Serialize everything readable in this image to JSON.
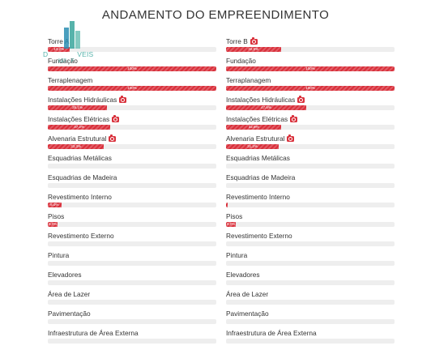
{
  "page": {
    "title": "ANDAMENTO DO EMPREENDIMENTO"
  },
  "colors": {
    "accent": "#d9303b",
    "track": "#eeeeee",
    "watermark": "#3aa69d"
  },
  "watermark": {
    "brand": "D",
    "brand_tail": "VEIS",
    "creci": "337 - F"
  },
  "towers": [
    {
      "name": "Torre A",
      "has_camera": false,
      "total_progress": 0.132,
      "total_progress_label": "13,2%",
      "stages": [
        {
          "label": "Fundação",
          "progress": 1.0,
          "progress_label": "100%",
          "camera": false
        },
        {
          "label": "Terraplenagem",
          "progress": 1.0,
          "progress_label": "100%",
          "camera": false
        },
        {
          "label": "Instalações Hidráulicas",
          "progress": 0.351,
          "progress_label": "35,1%",
          "camera": true
        },
        {
          "label": "Instalações Elétricas",
          "progress": 0.372,
          "progress_label": "37,2%",
          "camera": true
        },
        {
          "label": "Alvenaria Estrutural",
          "progress": 0.333,
          "progress_label": "33,3%",
          "camera": true
        },
        {
          "label": "Esquadrias Metálicas",
          "progress": 0,
          "progress_label": "",
          "camera": false
        },
        {
          "label": "Esquadrias de Madeira",
          "progress": 0,
          "progress_label": "",
          "camera": false
        },
        {
          "label": "Revestimento Interno",
          "progress": 0.08,
          "progress_label": "8,0%",
          "camera": false
        },
        {
          "label": "Pisos",
          "progress": 0.06,
          "progress_label": "6,0%",
          "camera": false
        },
        {
          "label": "Revestimento Externo",
          "progress": 0,
          "progress_label": "",
          "camera": false
        },
        {
          "label": "Pintura",
          "progress": 0,
          "progress_label": "",
          "camera": false
        },
        {
          "label": "Elevadores",
          "progress": 0,
          "progress_label": "",
          "camera": false
        },
        {
          "label": "Área de Lazer",
          "progress": 0,
          "progress_label": "",
          "camera": false
        },
        {
          "label": "Pavimentação",
          "progress": 0,
          "progress_label": "",
          "camera": false
        },
        {
          "label": "Infraestrutura de Área Externa",
          "progress": 0,
          "progress_label": "",
          "camera": false
        }
      ]
    },
    {
      "name": "Torre B",
      "has_camera": true,
      "total_progress": 0.325,
      "total_progress_label": "32,5%",
      "stages": [
        {
          "label": "Fundação",
          "progress": 1.0,
          "progress_label": "100%",
          "camera": false
        },
        {
          "label": "Terraplanagem",
          "progress": 1.0,
          "progress_label": "100%",
          "camera": false
        },
        {
          "label": "Instalações Hidráulicas",
          "progress": 0.476,
          "progress_label": "47,6%",
          "camera": true
        },
        {
          "label": "Instalações Elétricas",
          "progress": 0.328,
          "progress_label": "32,8%",
          "camera": true
        },
        {
          "label": "Alvenaria Estrutural",
          "progress": 0.312,
          "progress_label": "31,2%",
          "camera": true
        },
        {
          "label": "Esquadrias Metálicas",
          "progress": 0,
          "progress_label": "",
          "camera": false
        },
        {
          "label": "Esquadrias de Madeira",
          "progress": 0,
          "progress_label": "",
          "camera": false
        },
        {
          "label": "Revestimento Interno",
          "progress": 0.01,
          "progress_label": "",
          "camera": false
        },
        {
          "label": "Pisos",
          "progress": 0.06,
          "progress_label": "6,0%",
          "camera": false
        },
        {
          "label": "Revestimento Externo",
          "progress": 0,
          "progress_label": "",
          "camera": false
        },
        {
          "label": "Pintura",
          "progress": 0,
          "progress_label": "",
          "camera": false
        },
        {
          "label": "Elevadores",
          "progress": 0,
          "progress_label": "",
          "camera": false
        },
        {
          "label": "Área de Lazer",
          "progress": 0,
          "progress_label": "",
          "camera": false
        },
        {
          "label": "Pavimentação",
          "progress": 0,
          "progress_label": "",
          "camera": false
        },
        {
          "label": "Infraestrutura de Área Externa",
          "progress": 0,
          "progress_label": "",
          "camera": false
        }
      ]
    }
  ]
}
